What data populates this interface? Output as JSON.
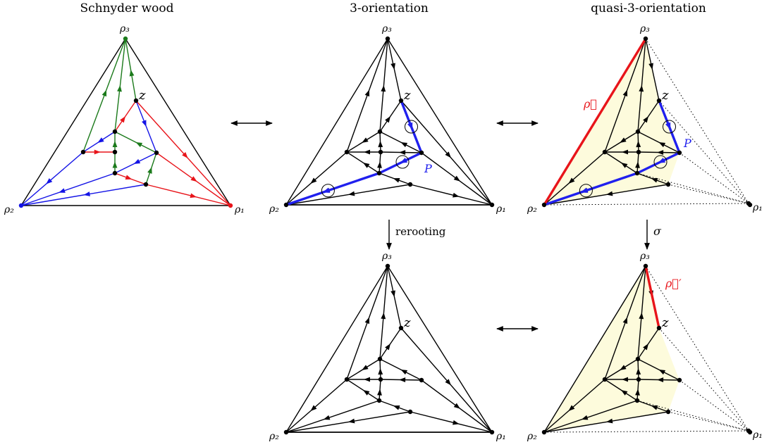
{
  "titles": {
    "schnyder": "Schnyder wood",
    "three_orientation": "3-orientation",
    "quasi": "quasi-3-orientation"
  },
  "labels": {
    "rho1": "ρ₁",
    "rho2": "ρ₂",
    "rho3": "ρ₃",
    "z": "z",
    "P": "P",
    "rho_vec": "ρ⃗",
    "rho_vec_prime": "ρ⃗′",
    "rerooting": "rerooting",
    "sigma": "σ"
  },
  "colors": {
    "red": "#e8141a",
    "green": "#1b7a1b",
    "blue": "#1414e6",
    "path_blue": "#2020ee",
    "fill": "#fdfbdc",
    "black": "#000000"
  },
  "transitions": [
    {
      "from": "Schnyder wood",
      "to": "3-orientation",
      "kind": "bijection"
    },
    {
      "from": "3-orientation",
      "to": "quasi-3-orientation",
      "kind": "bijection"
    },
    {
      "from": "3-orientation",
      "to": "3-orientation (rerooted)",
      "kind": "rerooting"
    },
    {
      "from": "quasi-3-orientation",
      "to": "quasi-3-orientation (after σ)",
      "kind": "σ"
    },
    {
      "from": "3-orientation (rerooted)",
      "to": "quasi-3-orientation (after σ)",
      "kind": "bijection"
    }
  ]
}
